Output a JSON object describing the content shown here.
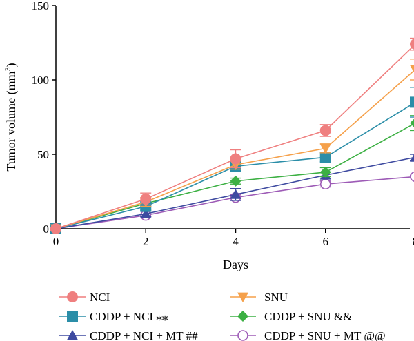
{
  "chart_data": {
    "type": "line",
    "title": "",
    "xlabel": "Days",
    "ylabel_main": "Tumor volume (mm",
    "ylabel_sup": "3",
    "ylabel_close": ")",
    "x": [
      0,
      2,
      4,
      6,
      8
    ],
    "xlim": [
      0,
      8
    ],
    "ylim": [
      0,
      150
    ],
    "x_ticks": [
      "0",
      "2",
      "4",
      "6",
      "8"
    ],
    "y_ticks": [
      "0",
      "50",
      "100",
      "150"
    ],
    "grid": false,
    "legend_position": "bottom",
    "series": [
      {
        "name": "NCI",
        "color": "#ef7f7f",
        "marker": "circle",
        "values": [
          0,
          20,
          47,
          66,
          124
        ],
        "errors": [
          1,
          4,
          6,
          4,
          4
        ]
      },
      {
        "name": "SNU",
        "color": "#f5a04a",
        "marker": "triangle-down",
        "values": [
          0,
          18,
          43,
          54,
          107
        ],
        "errors": [
          1,
          3,
          3,
          3,
          7
        ]
      },
      {
        "name": "CDDP + NCI ⁎⁎",
        "color": "#2b8ea8",
        "marker": "square",
        "values": [
          0,
          15,
          42,
          48,
          85
        ],
        "errors": [
          1,
          2,
          3,
          3,
          10
        ]
      },
      {
        "name": "CDDP + SNU &&",
        "color": "#3cb043",
        "marker": "diamond",
        "values": [
          0,
          17,
          32,
          38,
          71
        ],
        "errors": [
          1,
          2,
          2,
          3,
          5
        ]
      },
      {
        "name": "CDDP + NCI + MT ##",
        "color": "#3e4aa0",
        "marker": "triangle-up",
        "values": [
          0,
          10,
          23,
          36,
          48
        ],
        "errors": [
          1,
          2,
          4,
          2,
          2
        ]
      },
      {
        "name": "CDDP + SNU + MT @@",
        "color": "#9d5bb6",
        "marker": "circle-open",
        "values": [
          0,
          9,
          21,
          30,
          35
        ],
        "errors": [
          1,
          1,
          2,
          2,
          1
        ]
      }
    ]
  }
}
